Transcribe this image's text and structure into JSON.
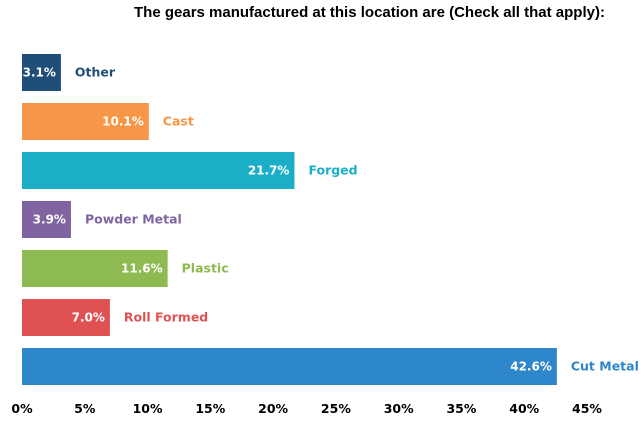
{
  "chart_data": {
    "type": "bar",
    "orientation": "horizontal",
    "title": "The gears manufactured at this location are (Check all that apply):",
    "categories": [
      "Other",
      "Cast",
      "Forged",
      "Powder Metal",
      "Plastic",
      "Roll Formed",
      "Cut Metal"
    ],
    "values": [
      3.1,
      10.1,
      21.7,
      3.9,
      11.6,
      7.0,
      42.6
    ],
    "value_labels": [
      "3.1%",
      "10.1%",
      "21.7%",
      "3.9%",
      "11.6%",
      "7.0%",
      "42.6%"
    ],
    "colors": [
      "#1f4e79",
      "#f79646",
      "#1aafc7",
      "#8064a2",
      "#8dbb52",
      "#e05252",
      "#2e86cb"
    ],
    "xlim": [
      0,
      45
    ],
    "xticks": [
      "0%",
      "5%",
      "10%",
      "15%",
      "20%",
      "25%",
      "30%",
      "35%",
      "40%",
      "45%"
    ],
    "xlabel": "",
    "ylabel": "",
    "grid": false,
    "legend": "none"
  }
}
